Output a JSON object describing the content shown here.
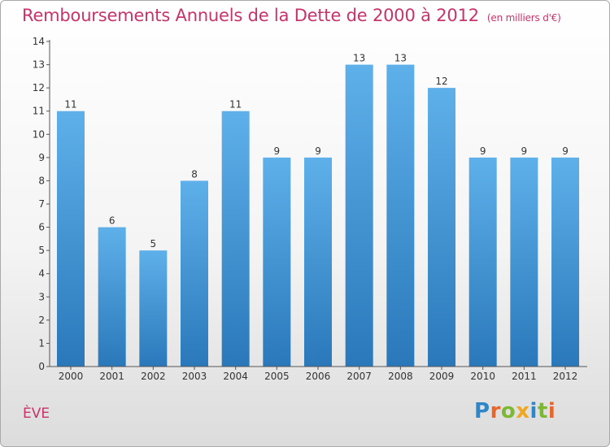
{
  "title": "Remboursements Annuels de la Dette de 2000 à 2012",
  "unit_note": "(en milliers d'€)",
  "commune": "ÈVE",
  "logo": {
    "text": "Proxiti",
    "letters": [
      {
        "ch": "P",
        "color": "#2f86c8"
      },
      {
        "ch": "r",
        "color": "#e8662b"
      },
      {
        "ch": "o",
        "color": "#7cb832"
      },
      {
        "ch": "x",
        "color": "#f0a820"
      },
      {
        "ch": "i",
        "color": "#2f86c8"
      },
      {
        "ch": "t",
        "color": "#7cb832"
      },
      {
        "ch": "i",
        "color": "#e8662b"
      }
    ]
  },
  "colors": {
    "title": "#c8336b",
    "bar_top": "#5eb0ea",
    "bar_bottom": "#2a78ba",
    "axis": "#555555"
  },
  "chart_data": {
    "type": "bar",
    "title": "Remboursements Annuels de la Dette de 2000 à 2012",
    "subtitle": "(en milliers d'€)",
    "xlabel": "",
    "ylabel": "",
    "categories": [
      "2000",
      "2001",
      "2002",
      "2003",
      "2004",
      "2005",
      "2006",
      "2007",
      "2008",
      "2009",
      "2010",
      "2011",
      "2012"
    ],
    "values": [
      11,
      6,
      5,
      8,
      11,
      9,
      9,
      13,
      13,
      12,
      9,
      9,
      9
    ],
    "ylim": [
      0,
      14
    ],
    "yticks": [
      0,
      1,
      2,
      3,
      4,
      5,
      6,
      7,
      8,
      9,
      10,
      11,
      12,
      13,
      14
    ],
    "grid": false,
    "data_labels": true
  }
}
